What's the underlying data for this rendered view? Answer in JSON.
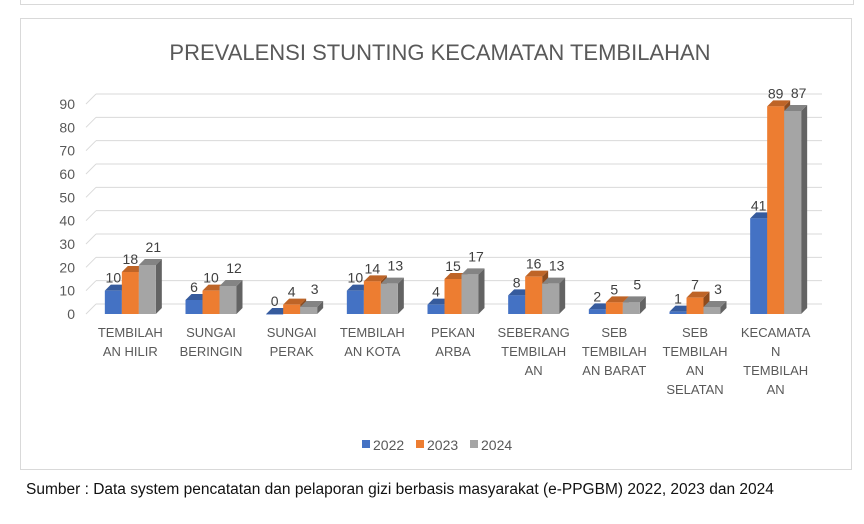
{
  "chart_data": {
    "type": "bar",
    "title": "PREVALENSI STUNTING KECAMATAN TEMBILAHAN",
    "categories": [
      [
        "TEMBILAH",
        "AN HILIR"
      ],
      [
        "SUNGAI",
        "BERINGIN"
      ],
      [
        "SUNGAI",
        "PERAK"
      ],
      [
        "TEMBILAH",
        "AN KOTA"
      ],
      [
        "PEKAN",
        "ARBA"
      ],
      [
        "SEBERANG",
        "TEMBILAH",
        "AN"
      ],
      [
        "SEB",
        "TEMBILAH",
        "AN BARAT"
      ],
      [
        "SEB",
        "TEMBILAH",
        "AN",
        "SELATAN"
      ],
      [
        "KECAMATA",
        "N",
        "TEMBILAH",
        "AN"
      ]
    ],
    "series": [
      {
        "name": "2022",
        "color": "#4472c4",
        "values": [
          10,
          6,
          0,
          10,
          4,
          8,
          2,
          1,
          41
        ]
      },
      {
        "name": "2023",
        "color": "#ed7d31",
        "values": [
          18,
          10,
          4,
          14,
          15,
          16,
          5,
          7,
          89
        ]
      },
      {
        "name": "2024",
        "color": "#a5a5a5",
        "values": [
          21,
          12,
          3,
          13,
          17,
          13,
          5,
          3,
          87
        ]
      }
    ],
    "ylim": [
      0,
      90
    ],
    "yticks": [
      0,
      10,
      20,
      30,
      40,
      50,
      60,
      70,
      80,
      90
    ],
    "grid": true,
    "legend": "bottom",
    "style": "3d-clustered-column"
  },
  "caption": "Sumber : Data system pencatatan dan pelaporan gizi berbasis masyarakat (e-PPGBM) 2022, 2023 dan 2024"
}
